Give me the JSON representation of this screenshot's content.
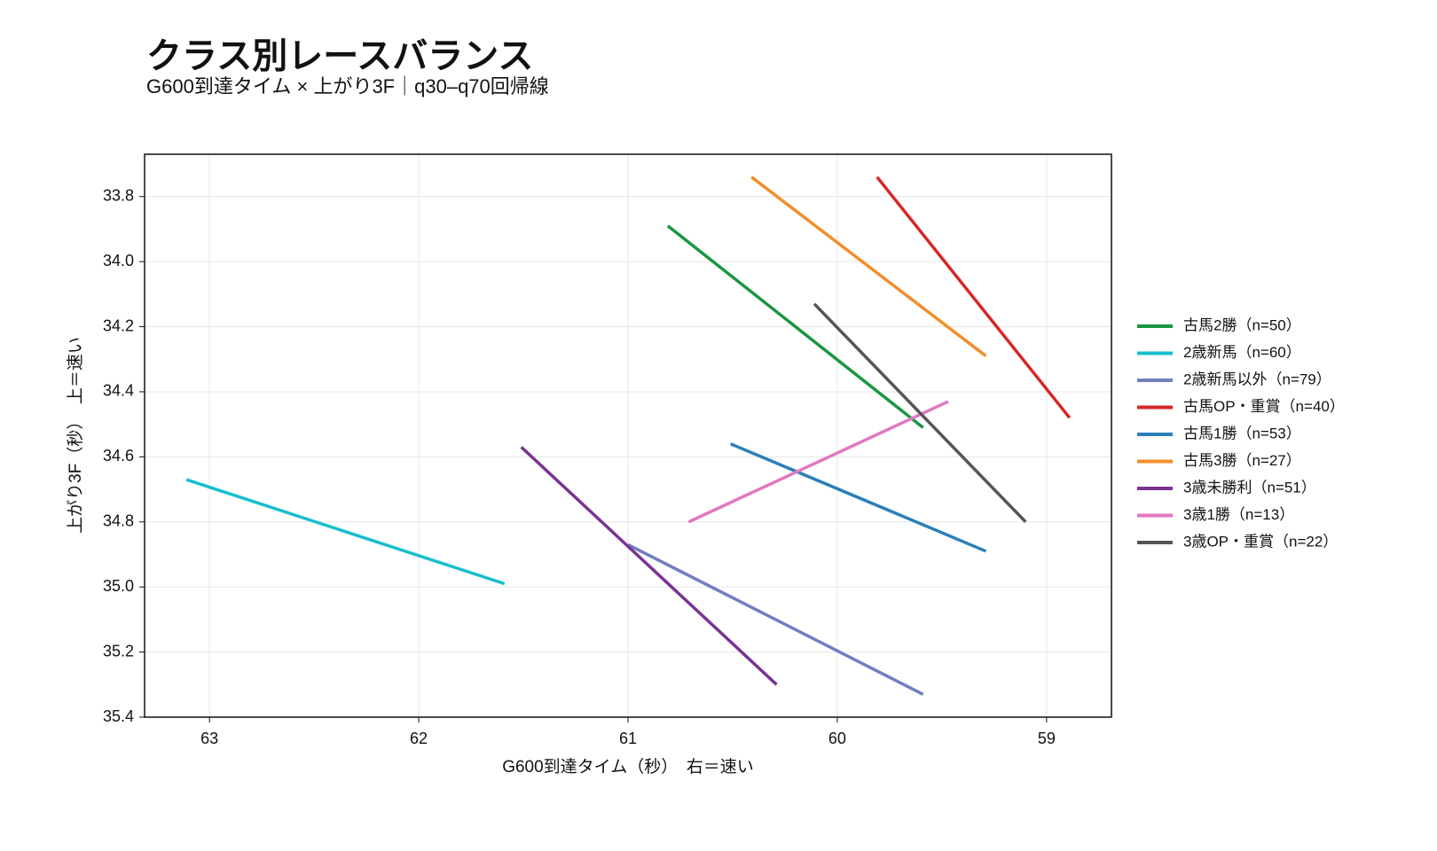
{
  "chart_data": {
    "type": "line",
    "title": "クラス別レースバランス",
    "subtitle": "G600到達タイム × 上がり3F｜q30–q70回帰線",
    "x_label": "G600到達タイム（秒）　右＝速い",
    "y_label": "上がり3F（秒）　上＝速い",
    "xlim": [
      63.31,
      58.69
    ],
    "xticks": [
      63,
      62,
      61,
      60,
      59
    ],
    "ylim": [
      35.4,
      33.67
    ],
    "yticks": [
      {
        "value": 33.8,
        "label": "33.8"
      },
      {
        "value": 34.0,
        "label": "34.0"
      },
      {
        "value": 34.2,
        "label": "34.2"
      },
      {
        "value": 34.4,
        "label": "34.4"
      },
      {
        "value": 34.6,
        "label": "34.6"
      },
      {
        "value": 34.8,
        "label": "34.8"
      },
      {
        "value": 35.0,
        "label": "35.0"
      },
      {
        "value": 35.2,
        "label": "35.2"
      },
      {
        "value": 35.4,
        "label": "35.4"
      }
    ],
    "grid": true,
    "legend": "right",
    "series": [
      {
        "name": "古馬2勝（n=50）",
        "color": "#1a9641",
        "x": [
          60.81,
          59.59
        ],
        "values": [
          33.89,
          34.51
        ]
      },
      {
        "name": "2歳新馬（n=60）",
        "color": "#17becf",
        "x": [
          63.11,
          61.59
        ],
        "values": [
          34.67,
          34.99
        ]
      },
      {
        "name": "2歳新馬以外（n=79）",
        "color": "#6f7fbf",
        "x": [
          61.0,
          59.59
        ],
        "values": [
          34.87,
          35.33
        ]
      },
      {
        "name": "古馬OP・重賞（n=40）",
        "color": "#d62728",
        "x": [
          59.81,
          58.89
        ],
        "values": [
          33.74,
          34.48
        ]
      },
      {
        "name": "古馬1勝（n=53）",
        "color": "#2c7fb8",
        "x": [
          60.51,
          59.29
        ],
        "values": [
          34.56,
          34.89
        ]
      },
      {
        "name": "古馬3勝（n=27）",
        "color": "#f28e2b",
        "x": [
          60.41,
          59.29
        ],
        "values": [
          33.74,
          34.29
        ]
      },
      {
        "name": "3歳未勝利（n=51）",
        "color": "#7b3294",
        "x": [
          61.51,
          60.29
        ],
        "values": [
          34.57,
          35.3
        ]
      },
      {
        "name": "3歳1勝（n=13）",
        "color": "#e377c2",
        "x": [
          60.71,
          59.47
        ],
        "values": [
          34.8,
          34.43
        ]
      },
      {
        "name": "3歳OP・重賞（n=22）",
        "color": "#555555",
        "x": [
          60.11,
          59.1
        ],
        "values": [
          34.13,
          34.8
        ]
      }
    ]
  }
}
